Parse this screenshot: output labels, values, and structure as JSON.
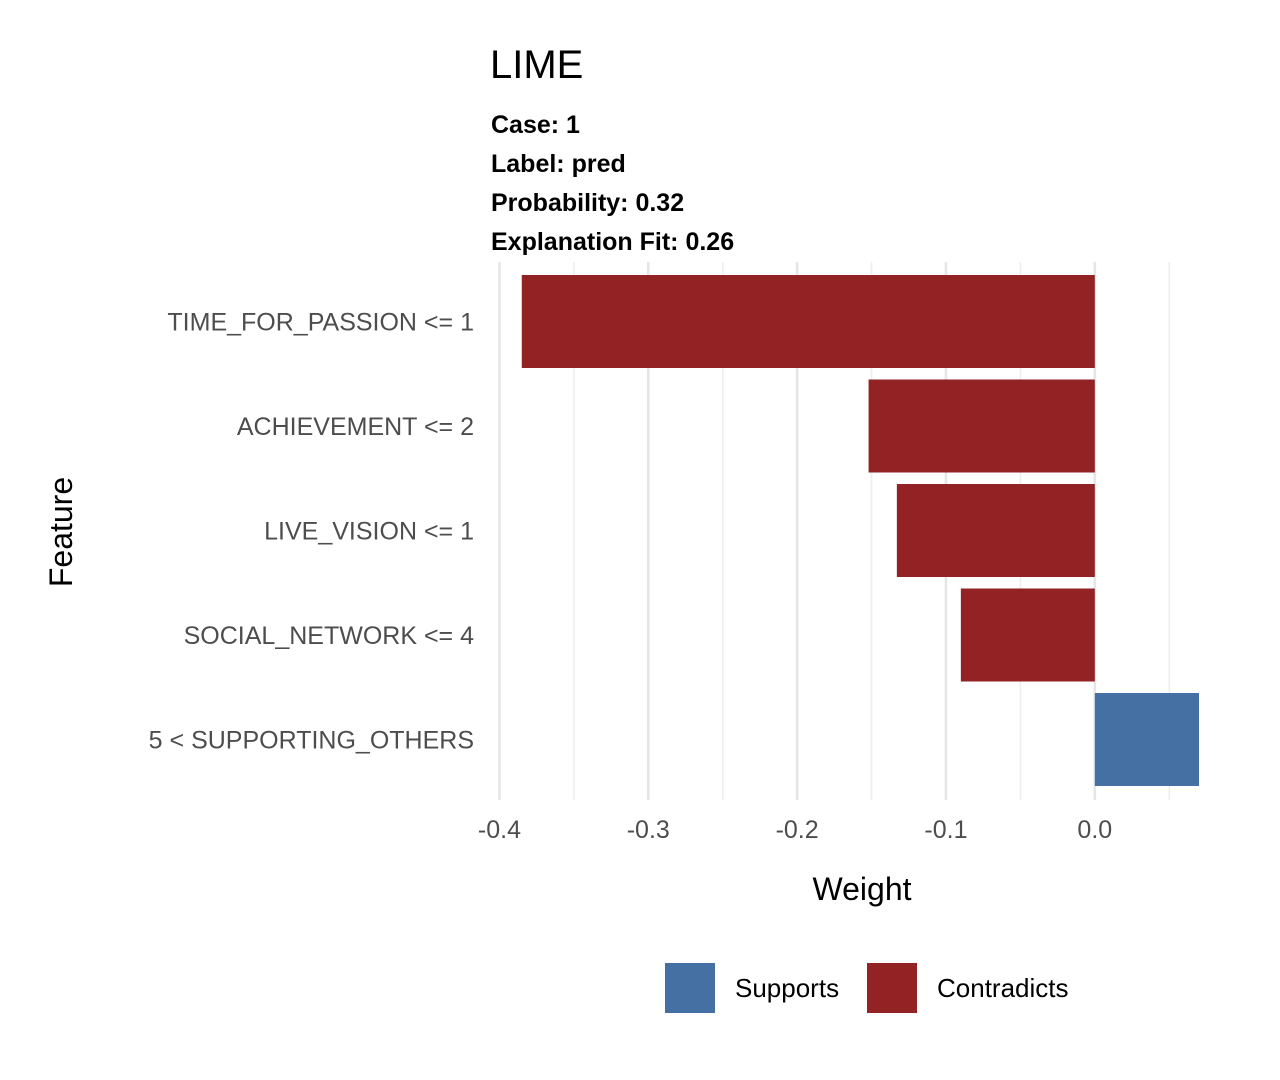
{
  "chart_data": {
    "type": "bar",
    "orientation": "horizontal",
    "title": "LIME",
    "subtitle_lines": [
      "Case: 1",
      "Label: pred",
      "Probability: 0.32",
      "Explanation Fit: 0.26"
    ],
    "categories": [
      "TIME_FOR_PASSION <= 1",
      "ACHIEVEMENT <= 2",
      "LIVE_VISION <= 1",
      "SOCIAL_NETWORK <= 4",
      "5 < SUPPORTING_OTHERS"
    ],
    "values": [
      -0.385,
      -0.152,
      -0.133,
      -0.09,
      0.07
    ],
    "bar_groups": [
      "Contradicts",
      "Contradicts",
      "Contradicts",
      "Contradicts",
      "Supports"
    ],
    "xlabel": "Weight",
    "ylabel": "Feature",
    "xlim": [
      -0.405,
      0.07
    ],
    "x_ticks": [
      -0.4,
      -0.3,
      -0.2,
      -0.1,
      0.0
    ],
    "x_tick_labels": [
      "-0.4",
      "-0.3",
      "-0.2",
      "-0.1",
      "0.0"
    ],
    "grid": true,
    "legend": {
      "position": "bottom",
      "items": [
        {
          "label": "Supports",
          "color": "#4570a3"
        },
        {
          "label": "Contradicts",
          "color": "#922224"
        }
      ]
    },
    "colors": {
      "Supports": "#4570a3",
      "Contradicts": "#922224"
    }
  }
}
